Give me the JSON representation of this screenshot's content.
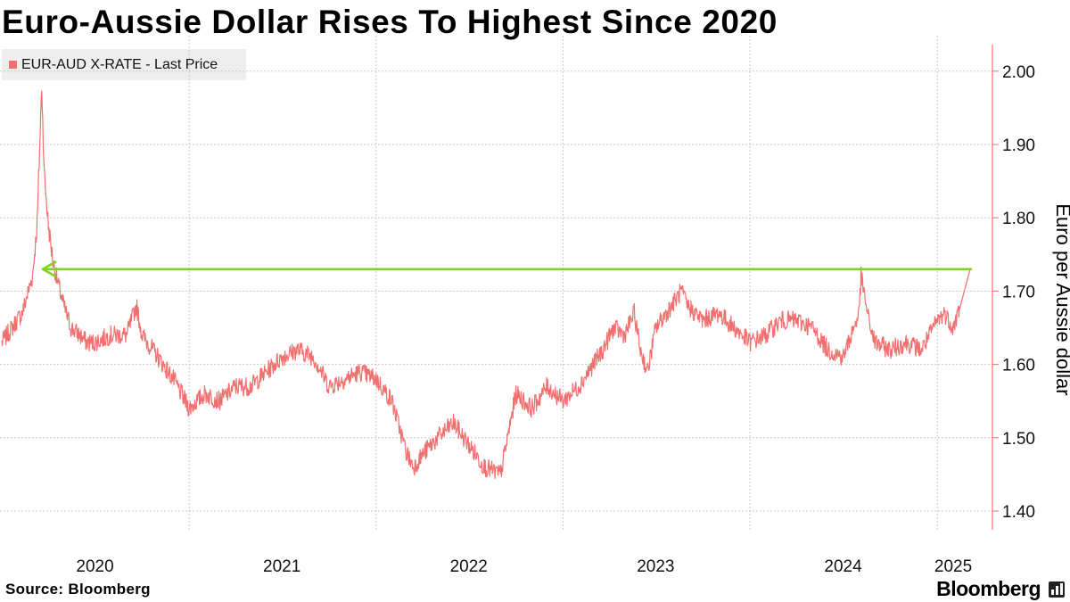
{
  "title": "Euro-Aussie Dollar Rises To Highest Since 2020",
  "legend": {
    "label": "EUR-AUD X-RATE - Last Price"
  },
  "source": "Source: Bloomberg",
  "brand": "Bloomberg",
  "colors": {
    "series": "#f07070",
    "axis": "#f07070",
    "arrow": "#7ed321",
    "grid": "#c8c8c8"
  },
  "chart_data": {
    "type": "line",
    "title": "Euro-Aussie Dollar Rises To Highest Since 2020",
    "xlabel": "",
    "ylabel": "Euro per Aussie dollar",
    "ylim": [
      1.38,
      2.04
    ],
    "yticks": [
      "1.40",
      "1.50",
      "1.60",
      "1.70",
      "1.80",
      "1.90",
      "2.00"
    ],
    "xlim": [
      "2020-01-01",
      "2025-03-06"
    ],
    "xtick_labels": [
      "2020",
      "2021",
      "2022",
      "2023",
      "2024",
      "2025"
    ],
    "grid": true,
    "legend_position": "top-left",
    "annotation": {
      "type": "horizontal-arrow",
      "level": 1.73,
      "description": "arrow pointing back to the 2020 level"
    },
    "series": [
      {
        "name": "EUR-AUD X-RATE - Last Price",
        "x": [
          "2020-01-01",
          "2020-02-10",
          "2020-03-01",
          "2020-03-10",
          "2020-03-19",
          "2020-03-24",
          "2020-04-01",
          "2020-04-10",
          "2020-04-20",
          "2020-05-01",
          "2020-05-15",
          "2020-06-01",
          "2020-06-15",
          "2020-07-01",
          "2020-08-01",
          "2020-09-01",
          "2020-09-20",
          "2020-10-01",
          "2020-11-01",
          "2020-12-01",
          "2021-01-01",
          "2021-02-01",
          "2021-03-01",
          "2021-04-01",
          "2021-05-01",
          "2021-06-01",
          "2021-07-01",
          "2021-08-01",
          "2021-09-01",
          "2021-10-01",
          "2021-11-01",
          "2021-12-01",
          "2022-01-01",
          "2022-02-01",
          "2022-03-01",
          "2022-03-15",
          "2022-04-05",
          "2022-05-01",
          "2022-06-01",
          "2022-07-01",
          "2022-08-01",
          "2022-09-01",
          "2022-10-01",
          "2022-11-01",
          "2022-12-01",
          "2023-01-01",
          "2023-02-01",
          "2023-03-01",
          "2023-03-20",
          "2023-04-10",
          "2023-05-01",
          "2023-05-20",
          "2023-06-01",
          "2023-06-15",
          "2023-07-01",
          "2023-08-01",
          "2023-08-20",
          "2023-09-01",
          "2023-10-01",
          "2023-11-01",
          "2023-12-01",
          "2024-01-01",
          "2024-02-01",
          "2024-03-01",
          "2024-04-01",
          "2024-05-01",
          "2024-06-01",
          "2024-07-01",
          "2024-08-01",
          "2024-08-05",
          "2024-08-20",
          "2024-09-01",
          "2024-10-01",
          "2024-11-01",
          "2024-12-01",
          "2025-01-01",
          "2025-01-15",
          "2025-02-01",
          "2025-02-15",
          "2025-03-06"
        ],
        "values": [
          1.63,
          1.67,
          1.72,
          1.79,
          1.98,
          1.86,
          1.79,
          1.74,
          1.71,
          1.68,
          1.65,
          1.64,
          1.63,
          1.63,
          1.64,
          1.64,
          1.68,
          1.64,
          1.61,
          1.58,
          1.54,
          1.56,
          1.55,
          1.57,
          1.57,
          1.59,
          1.61,
          1.62,
          1.61,
          1.57,
          1.58,
          1.59,
          1.58,
          1.55,
          1.48,
          1.46,
          1.48,
          1.5,
          1.52,
          1.49,
          1.46,
          1.45,
          1.56,
          1.54,
          1.57,
          1.55,
          1.57,
          1.6,
          1.62,
          1.65,
          1.64,
          1.67,
          1.62,
          1.59,
          1.65,
          1.68,
          1.7,
          1.68,
          1.66,
          1.67,
          1.65,
          1.63,
          1.64,
          1.66,
          1.66,
          1.65,
          1.62,
          1.61,
          1.67,
          1.72,
          1.66,
          1.63,
          1.62,
          1.63,
          1.62,
          1.66,
          1.67,
          1.65,
          1.68,
          1.73
        ]
      }
    ]
  }
}
